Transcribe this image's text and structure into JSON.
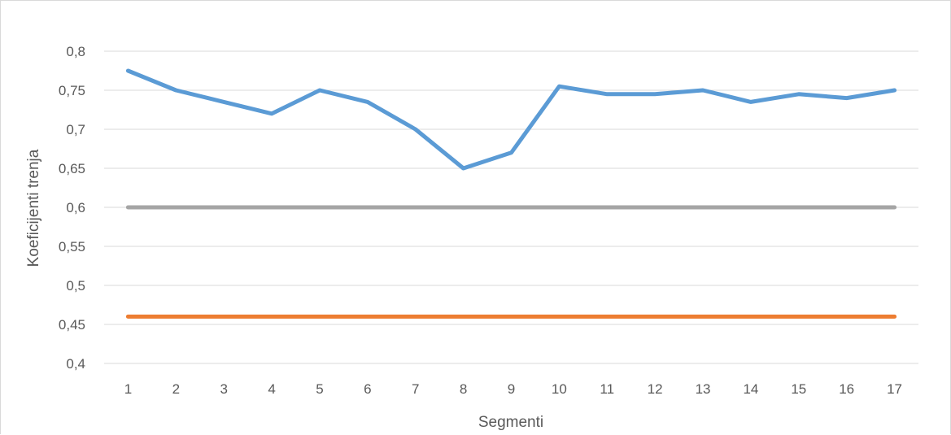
{
  "chart_data": {
    "type": "line",
    "title": "",
    "xlabel": "Segmenti",
    "ylabel": "Koeficijenti trenja",
    "categories": [
      "1",
      "2",
      "3",
      "4",
      "5",
      "6",
      "7",
      "8",
      "9",
      "10",
      "11",
      "12",
      "13",
      "14",
      "15",
      "16",
      "17"
    ],
    "ylim": [
      0.4,
      0.8
    ],
    "yticks": [
      "0,4",
      "0,45",
      "0,5",
      "0,55",
      "0,6",
      "0,65",
      "0,7",
      "0,75",
      "0,8"
    ],
    "ytick_values": [
      0.4,
      0.45,
      0.5,
      0.55,
      0.6,
      0.65,
      0.7,
      0.75,
      0.8
    ],
    "grid": true,
    "legend": "none",
    "series": [
      {
        "color": "#5b9bd5",
        "values": [
          0.775,
          0.75,
          0.735,
          0.72,
          0.75,
          0.735,
          0.7,
          0.65,
          0.67,
          0.755,
          0.745,
          0.745,
          0.75,
          0.735,
          0.745,
          0.74,
          0.75
        ]
      },
      {
        "color": "#a5a5a5",
        "values": [
          0.6,
          0.6,
          0.6,
          0.6,
          0.6,
          0.6,
          0.6,
          0.6,
          0.6,
          0.6,
          0.6,
          0.6,
          0.6,
          0.6,
          0.6,
          0.6,
          0.6
        ]
      },
      {
        "color": "#ed7d31",
        "values": [
          0.46,
          0.46,
          0.46,
          0.46,
          0.46,
          0.46,
          0.46,
          0.46,
          0.46,
          0.46,
          0.46,
          0.46,
          0.46,
          0.46,
          0.46,
          0.46,
          0.46
        ]
      }
    ]
  }
}
